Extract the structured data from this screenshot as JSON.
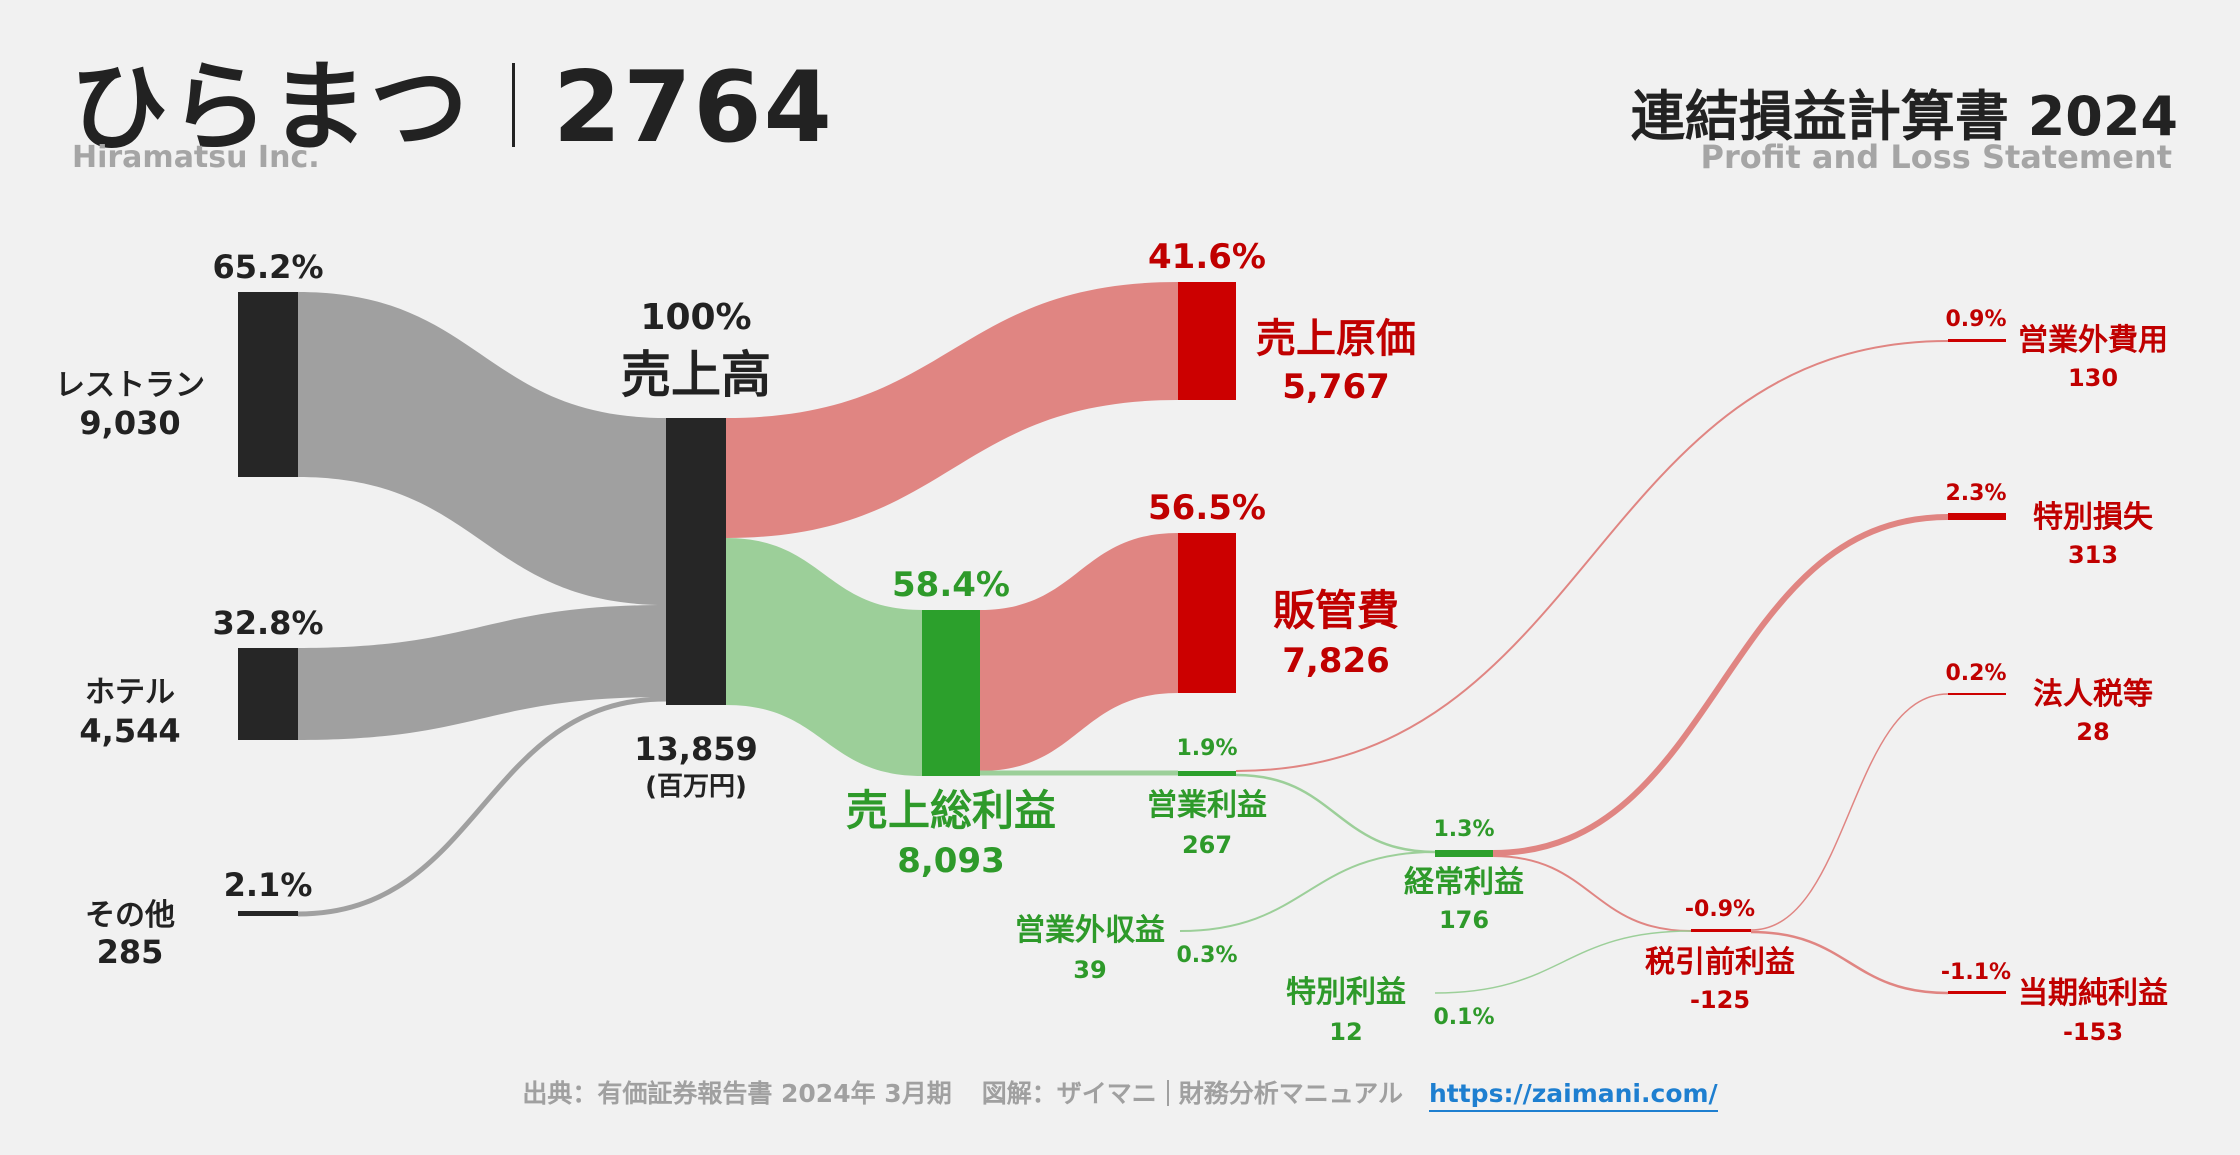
{
  "header": {
    "company": "ひらまつ",
    "code": "2764",
    "company_en": "Hiramatsu Inc.",
    "title": "連結損益計算書 2024",
    "subtitle": "Profit and Loss Statement"
  },
  "footer": {
    "source": "出典：有価証券報告書 2024年 3月期",
    "credit": "図解：ザイマニ",
    "credit2": "財務分析マニュアル",
    "url": "https://zaimani.com/"
  },
  "colors": {
    "dark": "#262626",
    "gray_flow": "#a0a0a0",
    "green": "#2ca02c",
    "green_flow": "#9ccf99",
    "red": "#cc0000",
    "red_flow": "#e08582",
    "red_text": "#c00000",
    "green_text": "#2e9a2a"
  },
  "chart_data": {
    "type": "sankey",
    "unit": "(百万円)",
    "nodes": [
      {
        "id": "restaurant",
        "label": "レストラン",
        "value": "9,030",
        "pct": "65.2%"
      },
      {
        "id": "hotel",
        "label": "ホテル",
        "value": "4,544",
        "pct": "32.8%"
      },
      {
        "id": "other",
        "label": "その他",
        "value": "285",
        "pct": "2.1%"
      },
      {
        "id": "revenue",
        "label": "売上高",
        "value": "13,859",
        "pct": "100%"
      },
      {
        "id": "cogs",
        "label": "売上原価",
        "value": "5,767",
        "pct": "41.6%"
      },
      {
        "id": "gross",
        "label": "売上総利益",
        "value": "8,093",
        "pct": "58.4%"
      },
      {
        "id": "sga",
        "label": "販管費",
        "value": "7,826",
        "pct": "56.5%"
      },
      {
        "id": "op",
        "label": "営業利益",
        "value": "267",
        "pct": "1.9%"
      },
      {
        "id": "nonop_inc",
        "label": "営業外収益",
        "value": "39",
        "pct": "0.3%"
      },
      {
        "id": "nonop_exp",
        "label": "営業外費用",
        "value": "130",
        "pct": "0.9%"
      },
      {
        "id": "ordinary",
        "label": "経常利益",
        "value": "176",
        "pct": "1.3%"
      },
      {
        "id": "ext_gain",
        "label": "特別利益",
        "value": "12",
        "pct": "0.1%"
      },
      {
        "id": "ext_loss",
        "label": "特別損失",
        "value": "313",
        "pct": "2.3%"
      },
      {
        "id": "pretax",
        "label": "税引前利益",
        "value": "-125",
        "pct": "-0.9%"
      },
      {
        "id": "tax",
        "label": "法人税等",
        "value": "28",
        "pct": "0.2%"
      },
      {
        "id": "net",
        "label": "当期純利益",
        "value": "-153",
        "pct": "-1.1%"
      }
    ],
    "flows": [
      {
        "from": "restaurant",
        "to": "revenue",
        "value": 9030
      },
      {
        "from": "hotel",
        "to": "revenue",
        "value": 4544
      },
      {
        "from": "other",
        "to": "revenue",
        "value": 285
      },
      {
        "from": "revenue",
        "to": "cogs",
        "value": 5767
      },
      {
        "from": "revenue",
        "to": "gross",
        "value": 8093
      },
      {
        "from": "gross",
        "to": "sga",
        "value": 7826
      },
      {
        "from": "gross",
        "to": "op",
        "value": 267
      },
      {
        "from": "op",
        "to": "nonop_exp",
        "value": 130
      },
      {
        "from": "op",
        "to": "ordinary",
        "value": 137
      },
      {
        "from": "nonop_inc",
        "to": "ordinary",
        "value": 39
      },
      {
        "from": "ordinary",
        "to": "ext_loss",
        "value": 176
      },
      {
        "from": "pretax",
        "to": "ext_loss",
        "value": 125
      },
      {
        "from": "ext_gain",
        "to": "ext_loss",
        "value": 12
      },
      {
        "from": "pretax",
        "to": "tax",
        "value": 28
      },
      {
        "from": "pretax",
        "to": "net",
        "value": 153
      }
    ]
  }
}
